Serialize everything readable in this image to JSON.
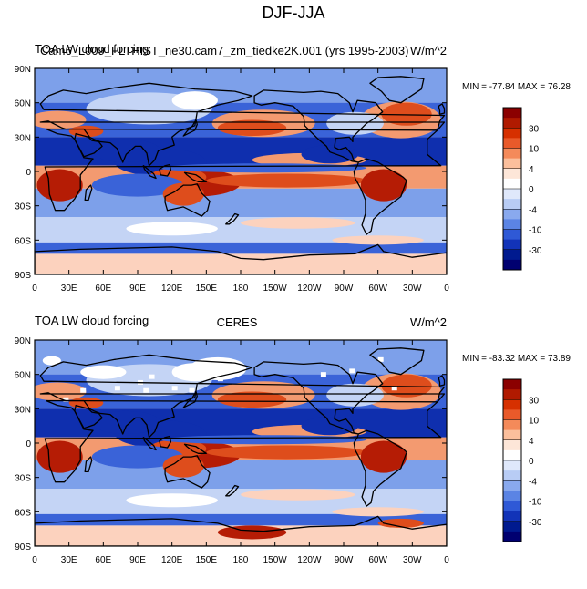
{
  "title": "DJF-JJA",
  "panels": [
    {
      "left_title": "TOA LW cloud forcing",
      "left_title_overlap": "Cam6_L009_FLTHIST_ne30.cam7_zm_tiedke2K.001 (yrs 1995-2003)",
      "center_title": "",
      "units": "W/m^2",
      "min_label": "MIN = -77.84",
      "max_label": "MAX =  76.28"
    },
    {
      "left_title": "TOA LW cloud forcing",
      "center_title": "CERES",
      "units": "W/m^2",
      "min_label": "MIN = -83.32",
      "max_label": "MAX =  73.89"
    }
  ],
  "lat_ticks": [
    "90N",
    "60N",
    "30N",
    "0",
    "30S",
    "60S",
    "90S"
  ],
  "lon_ticks": [
    "0",
    "30E",
    "60E",
    "90E",
    "120E",
    "150E",
    "180",
    "150W",
    "120W",
    "90W",
    "60W",
    "30W",
    "0"
  ],
  "colorbar": {
    "labels": [
      "30",
      "10",
      "4",
      "0",
      "-4",
      "-10",
      "-30"
    ],
    "colors": [
      "#8b0000",
      "#b01a00",
      "#d63000",
      "#e95a2a",
      "#f48a5a",
      "#fbbf9c",
      "#fde6d8",
      "#ffffff",
      "#dfe8fb",
      "#b8ccf5",
      "#89a9ee",
      "#5b84e4",
      "#2f59d6",
      "#1233b8",
      "#001a8f",
      "#000070"
    ]
  },
  "colors": {
    "deep_blue": "#0f2fae",
    "mid_blue": "#3a63d8",
    "light_blue": "#7da0ea",
    "pale_blue": "#c4d4f5",
    "white": "#ffffff",
    "pale_red": "#fcd2be",
    "light_red": "#f39a70",
    "mid_red": "#de4d1c",
    "deep_red": "#b51c05",
    "land": "#000000"
  }
}
